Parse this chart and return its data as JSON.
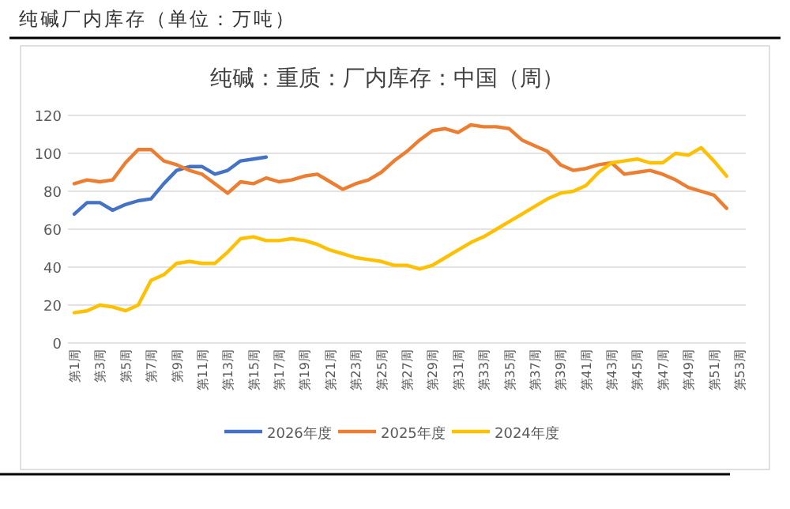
{
  "chart_data": {
    "type": "line",
    "title": "纯碱厂内库存（单位：万吨）",
    "subtitle": "纯碱：重质：厂内库存：中国（周）",
    "categories": [
      "第1周",
      null,
      "第3周",
      null,
      "第5周",
      null,
      "第7周",
      null,
      "第9周",
      null,
      "第11周",
      null,
      "第13周",
      null,
      "第15周",
      null,
      "第17周",
      null,
      "第19周",
      null,
      "第21周",
      null,
      "第23周",
      null,
      "第25周",
      null,
      "第27周",
      null,
      "第29周",
      null,
      "第31周",
      null,
      "第33周",
      null,
      "第35周",
      null,
      "第37周",
      null,
      "第39周",
      null,
      "第41周",
      null,
      "第43周",
      null,
      "第45周",
      null,
      "第47周",
      null,
      "第49周",
      null,
      "第51周",
      null,
      "第53周"
    ],
    "series": [
      {
        "name": "2026年度",
        "color": "#4472c4",
        "values": [
          68,
          74,
          74,
          70,
          73,
          75,
          76,
          84,
          91,
          93,
          93,
          89,
          91,
          96,
          97,
          98,
          null,
          null,
          null,
          null,
          null,
          null,
          null,
          null,
          null,
          null,
          null,
          null,
          null,
          null,
          null,
          null,
          null,
          null,
          null,
          null,
          null,
          null,
          null,
          null,
          null,
          null,
          null,
          null,
          null,
          null,
          null,
          null,
          null,
          null,
          null,
          null,
          null
        ]
      },
      {
        "name": "2025年度",
        "color": "#ed7d31",
        "values": [
          84,
          86,
          85,
          86,
          95,
          102,
          102,
          96,
          94,
          91,
          89,
          84,
          79,
          85,
          84,
          87,
          85,
          86,
          88,
          89,
          85,
          81,
          84,
          86,
          90,
          96,
          101,
          107,
          112,
          113,
          111,
          115,
          114,
          114,
          113,
          107,
          104,
          101,
          94,
          91,
          92,
          94,
          95,
          89,
          90,
          91,
          89,
          86,
          82,
          80,
          78,
          71,
          null
        ]
      },
      {
        "name": "2024年度",
        "color": "#ffc000",
        "values": [
          16,
          17,
          20,
          19,
          17,
          20,
          33,
          36,
          42,
          43,
          42,
          42,
          48,
          55,
          56,
          54,
          54,
          55,
          54,
          52,
          49,
          47,
          45,
          44,
          43,
          41,
          41,
          39,
          41,
          45,
          49,
          53,
          56,
          60,
          64,
          68,
          72,
          76,
          79,
          80,
          83,
          90,
          95,
          96,
          97,
          95,
          95,
          100,
          99,
          103,
          96,
          88,
          null
        ]
      }
    ],
    "ylim": [
      0,
      120
    ],
    "yticks": [
      0,
      20,
      40,
      60,
      80,
      100,
      120
    ],
    "grid": "y",
    "legend": "bottom",
    "marker": "none",
    "line_style": "solid"
  }
}
